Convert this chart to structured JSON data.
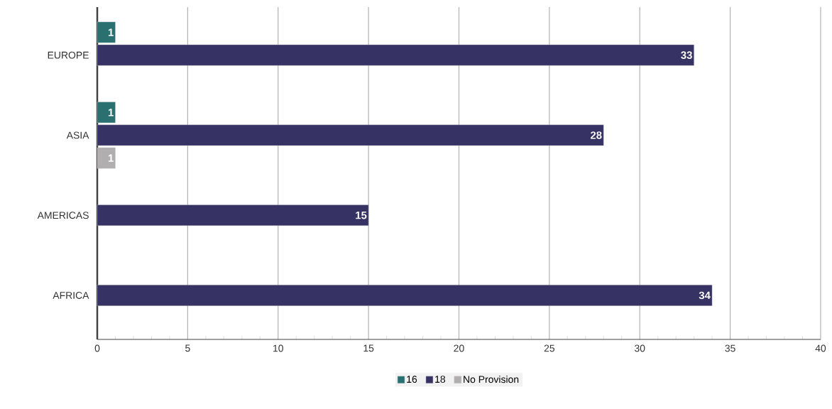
{
  "chart_data": {
    "type": "bar",
    "orientation": "horizontal",
    "categories": [
      "EUROPE",
      "ASIA",
      "AMERICAS",
      "AFRICA"
    ],
    "series": [
      {
        "name": "16",
        "color": "#2a7070",
        "values": [
          1,
          1,
          null,
          null
        ]
      },
      {
        "name": "18",
        "color": "#363264",
        "values": [
          33,
          28,
          15,
          34
        ]
      },
      {
        "name": "No Provision",
        "color": "#b0aeae",
        "values": [
          null,
          1,
          null,
          null
        ]
      }
    ],
    "xlim": [
      0,
      40
    ],
    "xticks": [
      0,
      5,
      10,
      15,
      20,
      25,
      30,
      35,
      40
    ],
    "grid": "x",
    "legend": "bottom",
    "data_labels": true
  }
}
